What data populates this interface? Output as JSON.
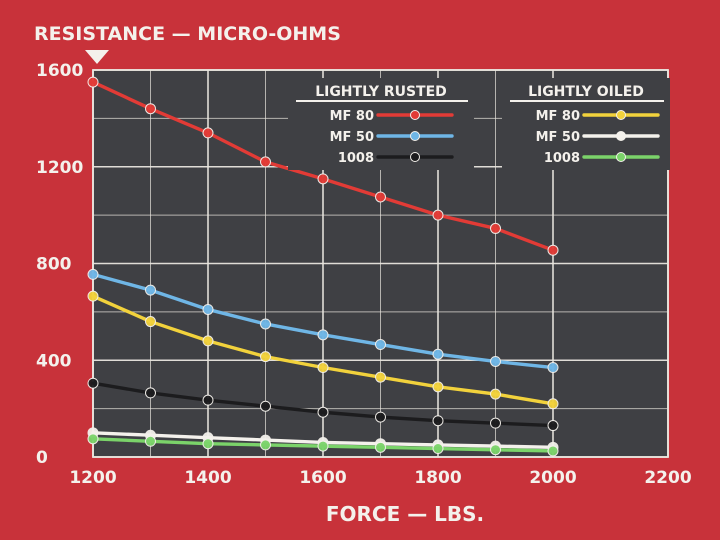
{
  "chart_data": {
    "type": "line",
    "ylabel": "RESISTANCE — MICRO-OHMS",
    "xlabel": "FORCE — LBS.",
    "xlim": [
      1200,
      2200
    ],
    "ylim": [
      0,
      1600
    ],
    "x_ticks": [
      1200,
      1400,
      1600,
      1800,
      2000,
      2200
    ],
    "y_ticks": [
      0,
      400,
      800,
      1200,
      1600
    ],
    "grid": true,
    "x": [
      1200,
      1300,
      1400,
      1500,
      1600,
      1700,
      1800,
      1900,
      2000
    ],
    "legend_groups": [
      {
        "title": "LIGHTLY RUSTED",
        "entries": [
          "MF 80",
          "MF 50",
          "1008"
        ]
      },
      {
        "title": "LIGHTLY OILED",
        "entries": [
          "MF 80",
          "MF 50",
          "1008"
        ]
      }
    ],
    "series": [
      {
        "name": "MF 80",
        "group": "LIGHTLY RUSTED",
        "color": "#e23b36",
        "values": [
          1550,
          1440,
          1340,
          1220,
          1150,
          1075,
          1000,
          945,
          855
        ]
      },
      {
        "name": "MF 50",
        "group": "LIGHTLY RUSTED",
        "color": "#6fb6e6",
        "values": [
          755,
          690,
          610,
          550,
          505,
          465,
          425,
          395,
          370
        ]
      },
      {
        "name": "1008",
        "group": "LIGHTLY RUSTED",
        "color": "#1c1c1e",
        "values": [
          305,
          265,
          235,
          210,
          185,
          165,
          150,
          140,
          130
        ]
      },
      {
        "name": "MF 80",
        "group": "LIGHTLY OILED",
        "color": "#f2d23c",
        "values": [
          665,
          560,
          480,
          415,
          370,
          330,
          290,
          260,
          220
        ]
      },
      {
        "name": "MF 50",
        "group": "LIGHTLY OILED",
        "color": "#f4f1ec",
        "values": [
          100,
          90,
          80,
          70,
          60,
          55,
          50,
          45,
          40
        ]
      },
      {
        "name": "1008",
        "group": "LIGHTLY OILED",
        "color": "#7bd36a",
        "values": [
          75,
          65,
          55,
          50,
          45,
          40,
          35,
          30,
          25
        ]
      }
    ]
  }
}
